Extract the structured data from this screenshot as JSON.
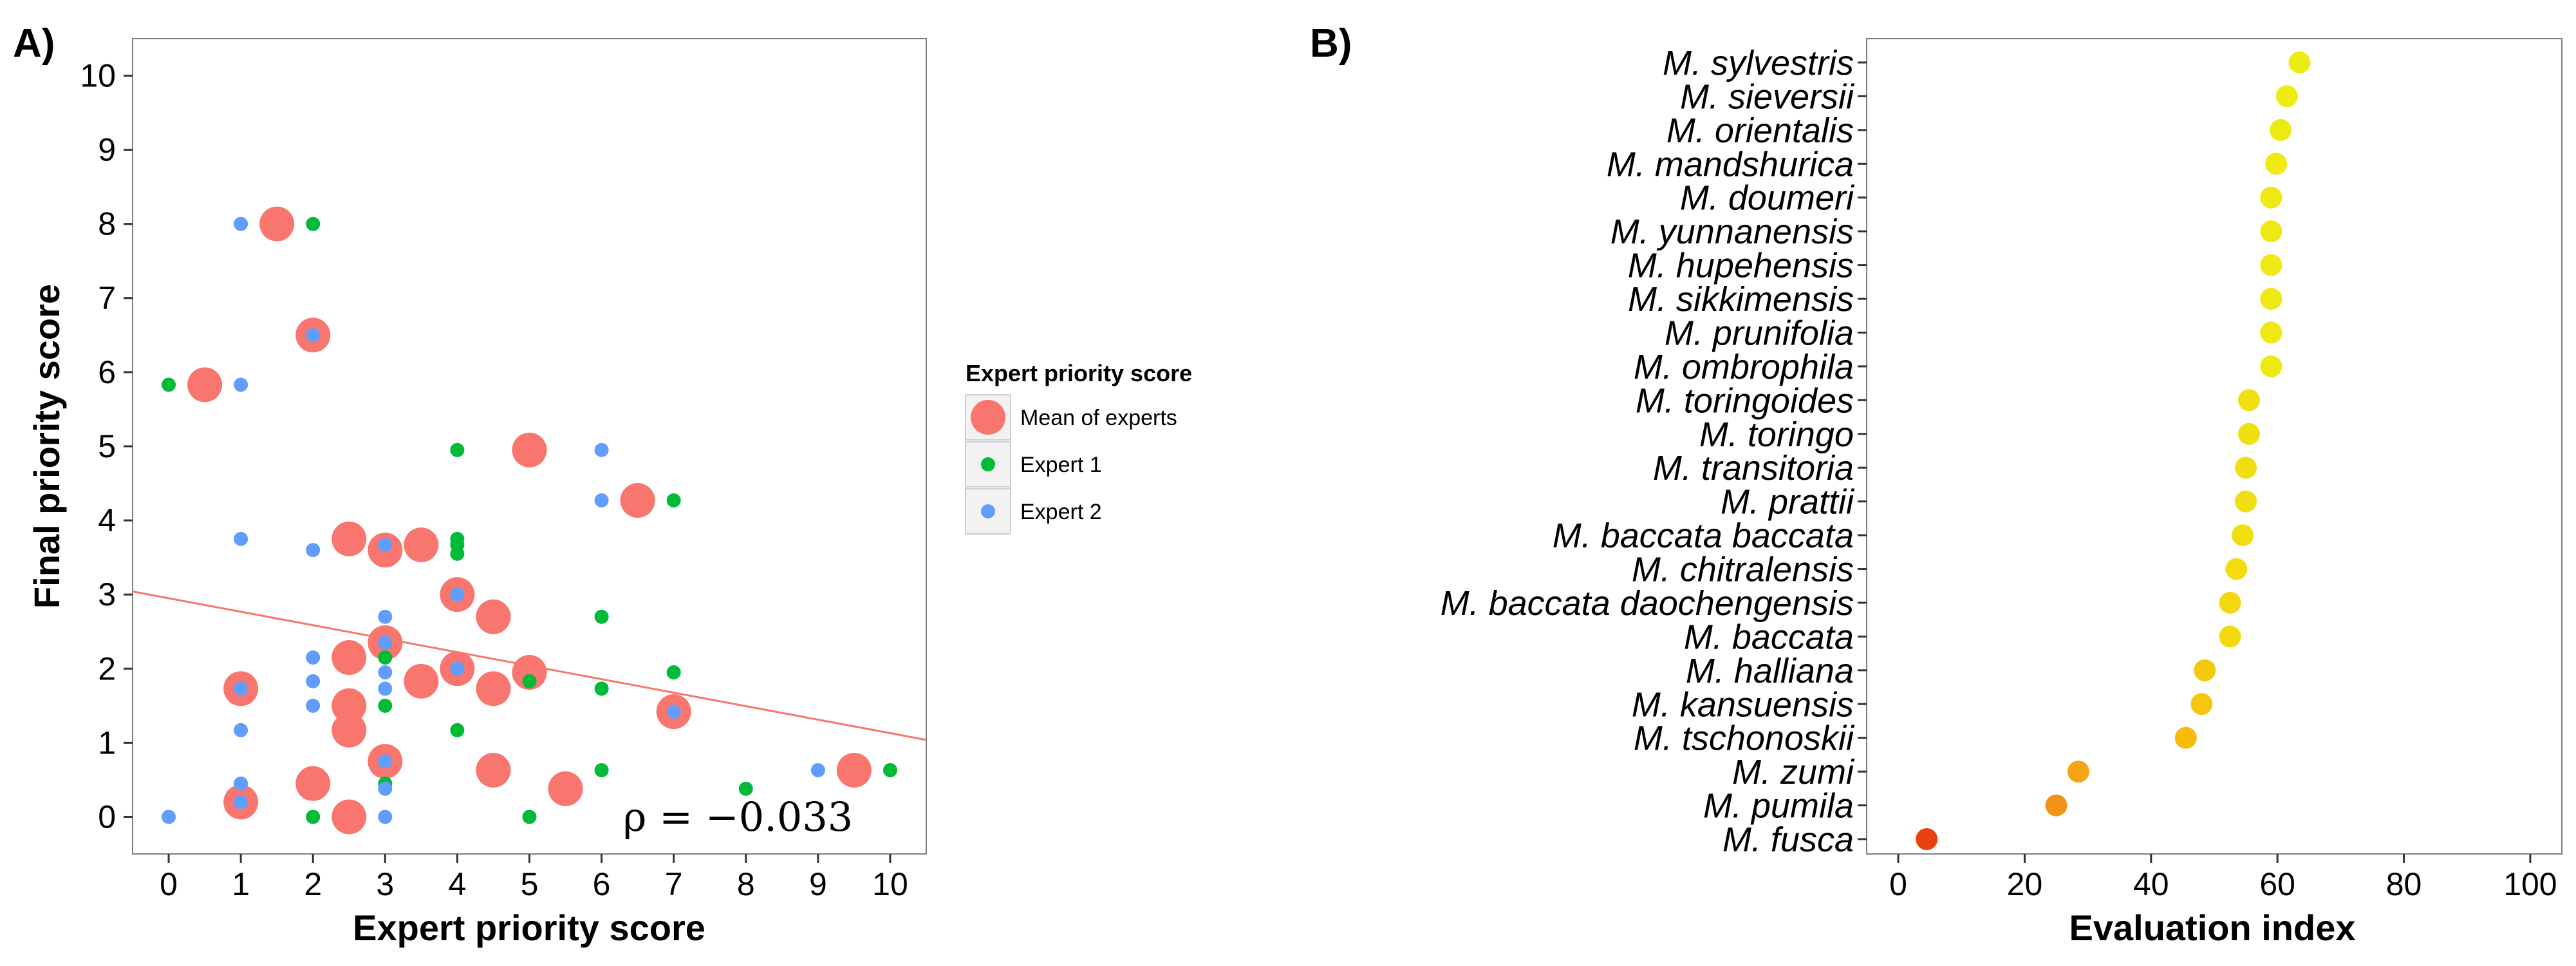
{
  "panelA": {
    "letter": "A)",
    "xlabel": "Expert priority score",
    "ylabel": "Final priority score",
    "annotation": "ρ = −0.033",
    "legend": {
      "title": "Expert priority score",
      "items": [
        {
          "label": "Mean of experts",
          "color": "#F8766D"
        },
        {
          "label": "Expert 1",
          "color": "#00BA38"
        },
        {
          "label": "Expert 2",
          "color": "#619CFF"
        }
      ]
    }
  },
  "panelB": {
    "letter": "B)",
    "xlabel": "Evaluation index"
  },
  "chart_data": [
    {
      "type": "scatter",
      "panel": "A",
      "xlabel": "Expert priority score",
      "ylabel": "Final priority score",
      "xlim": [
        -0.5,
        10.5
      ],
      "ylim": [
        -0.5,
        10.5
      ],
      "xticks": [
        0,
        1,
        2,
        3,
        4,
        5,
        6,
        7,
        8,
        9,
        10
      ],
      "yticks": [
        0,
        1,
        2,
        3,
        4,
        5,
        6,
        7,
        8,
        9,
        10
      ],
      "grid": false,
      "legend_position": "right",
      "series": [
        {
          "name": "Mean of experts",
          "color": "#F8766D",
          "points": [
            [
              1.5,
              8
            ],
            [
              2,
              6.5
            ],
            [
              0.5,
              5.83
            ],
            [
              5,
              4.95
            ],
            [
              6.5,
              4.27
            ],
            [
              2.5,
              3.75
            ],
            [
              3,
              3.6
            ],
            [
              3.5,
              3.67
            ],
            [
              4,
              3
            ],
            [
              4.5,
              2.7
            ],
            [
              3,
              2.35
            ],
            [
              2.5,
              2.15
            ],
            [
              4,
              2
            ],
            [
              5,
              1.95
            ],
            [
              3.5,
              1.83
            ],
            [
              4.5,
              1.73
            ],
            [
              1,
              1.73
            ],
            [
              2.5,
              1.5
            ],
            [
              7,
              1.42
            ],
            [
              2.5,
              1.17
            ],
            [
              3,
              0.75
            ],
            [
              4.5,
              0.63
            ],
            [
              9.5,
              0.63
            ],
            [
              2,
              0.45
            ],
            [
              5.5,
              0.38
            ],
            [
              1,
              0.2
            ],
            [
              2.5,
              0
            ]
          ]
        },
        {
          "name": "Expert 1",
          "color": "#00BA38",
          "points": [
            [
              2,
              8
            ],
            [
              0,
              5.83
            ],
            [
              4,
              4.95
            ],
            [
              7,
              4.27
            ],
            [
              4,
              3.75
            ],
            [
              4,
              3.67
            ],
            [
              4,
              3.55
            ],
            [
              6,
              2.7
            ],
            [
              3,
              2.15
            ],
            [
              7,
              1.95
            ],
            [
              5,
              1.83
            ],
            [
              6,
              1.73
            ],
            [
              3,
              1.5
            ],
            [
              4,
              1.17
            ],
            [
              6,
              0.63
            ],
            [
              10,
              0.63
            ],
            [
              3,
              0.45
            ],
            [
              8,
              0.38
            ],
            [
              2,
              0
            ],
            [
              5,
              0
            ]
          ]
        },
        {
          "name": "Expert 2",
          "color": "#619CFF",
          "points": [
            [
              1,
              8
            ],
            [
              2,
              6.5
            ],
            [
              1,
              5.83
            ],
            [
              6,
              4.95
            ],
            [
              6,
              4.27
            ],
            [
              1,
              3.75
            ],
            [
              2,
              3.6
            ],
            [
              3,
              3.67
            ],
            [
              4,
              3
            ],
            [
              3,
              2.7
            ],
            [
              3,
              2.35
            ],
            [
              2,
              2.15
            ],
            [
              4,
              2
            ],
            [
              3,
              1.95
            ],
            [
              2,
              1.83
            ],
            [
              3,
              1.73
            ],
            [
              1,
              1.73
            ],
            [
              2,
              1.5
            ],
            [
              7,
              1.42
            ],
            [
              1,
              1.17
            ],
            [
              3,
              0.75
            ],
            [
              9,
              0.63
            ],
            [
              1,
              0.45
            ],
            [
              3,
              0.38
            ],
            [
              1,
              0.2
            ],
            [
              0,
              0
            ],
            [
              3,
              0
            ]
          ]
        }
      ],
      "trend_line": {
        "intercept": 2.95,
        "slope": -0.182,
        "color": "#F8766D"
      },
      "annotation": "ρ = −0.033"
    },
    {
      "type": "dot",
      "panel": "B",
      "xlabel": "Evaluation index",
      "xlim": [
        -5,
        105
      ],
      "xticks": [
        0,
        20,
        40,
        60,
        80,
        100
      ],
      "grid": false,
      "categories": [
        "M. sylvestris",
        "M. sieversii",
        "M. orientalis",
        "M. mandshurica",
        "M. doumeri",
        "M. yunnanensis",
        "M. hupehensis",
        "M. sikkimensis",
        "M. prunifolia",
        "M. ombrophila",
        "M. toringoides",
        "M. toringo",
        "M. transitoria",
        "M. prattii",
        "M. baccata baccata",
        "M. chitralensis",
        "M. baccata daochengensis",
        "M. baccata",
        "M. halliana",
        "M. kansuensis",
        "M. tschonoskii",
        "M. zumi",
        "M. pumila",
        "M. fusca"
      ],
      "values": [
        63.5,
        61.5,
        60.5,
        59.8,
        59,
        59,
        59,
        59,
        59,
        59,
        55.5,
        55.5,
        55,
        55,
        54.5,
        53.5,
        52.5,
        52.5,
        48.5,
        48,
        45.5,
        28.5,
        25,
        4.5
      ],
      "colors": [
        "#ECEC13",
        "#EDEC13",
        "#EDEA13",
        "#EEEA12",
        "#EEE912",
        "#EEE912",
        "#EEE912",
        "#EEE912",
        "#EEE912",
        "#EEE912",
        "#F0E010",
        "#F0E010",
        "#F0DF10",
        "#F0DF10",
        "#F1DE10",
        "#F2DC0F",
        "#F3D90F",
        "#F3D90F",
        "#F5C80D",
        "#F5C60D",
        "#F6BC0C",
        "#F5A415",
        "#F2941A",
        "#E8400E"
      ]
    }
  ]
}
